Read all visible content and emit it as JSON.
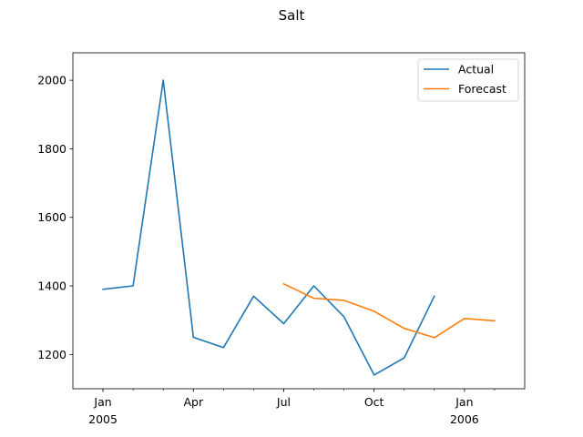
{
  "chart_data": {
    "type": "line",
    "title": "Salt",
    "xlabel": "",
    "ylabel": "",
    "x_ticks_major": [
      {
        "date": "2005-01",
        "label": "Jan",
        "sublabel": "2005"
      },
      {
        "date": "2005-04",
        "label": "Apr",
        "sublabel": ""
      },
      {
        "date": "2005-07",
        "label": "Jul",
        "sublabel": ""
      },
      {
        "date": "2005-10",
        "label": "Oct",
        "sublabel": ""
      },
      {
        "date": "2006-01",
        "label": "Jan",
        "sublabel": "2006"
      }
    ],
    "x_range": [
      "2004-12",
      "2006-03"
    ],
    "ylim": [
      1100,
      2080
    ],
    "y_ticks": [
      1200,
      1400,
      1600,
      1800,
      2000
    ],
    "grid": false,
    "legend_position": "top-right",
    "series": [
      {
        "name": "Actual",
        "color": "#1f77b4",
        "points": [
          {
            "date": "2005-01",
            "value": 1390
          },
          {
            "date": "2005-02",
            "value": 1400
          },
          {
            "date": "2005-03",
            "value": 2000
          },
          {
            "date": "2005-04",
            "value": 1250
          },
          {
            "date": "2005-05",
            "value": 1220
          },
          {
            "date": "2005-06",
            "value": 1370
          },
          {
            "date": "2005-07",
            "value": 1290
          },
          {
            "date": "2005-08",
            "value": 1400
          },
          {
            "date": "2005-09",
            "value": 1310
          },
          {
            "date": "2005-10",
            "value": 1140
          },
          {
            "date": "2005-11",
            "value": 1190
          },
          {
            "date": "2005-12",
            "value": 1370
          }
        ]
      },
      {
        "name": "Forecast",
        "color": "#ff7f0e",
        "points": [
          {
            "date": "2005-07",
            "value": 1406
          },
          {
            "date": "2005-08",
            "value": 1364
          },
          {
            "date": "2005-09",
            "value": 1358
          },
          {
            "date": "2005-10",
            "value": 1326
          },
          {
            "date": "2005-11",
            "value": 1276
          },
          {
            "date": "2005-12",
            "value": 1249
          },
          {
            "date": "2006-01",
            "value": 1305
          },
          {
            "date": "2006-02",
            "value": 1298
          }
        ]
      }
    ]
  }
}
